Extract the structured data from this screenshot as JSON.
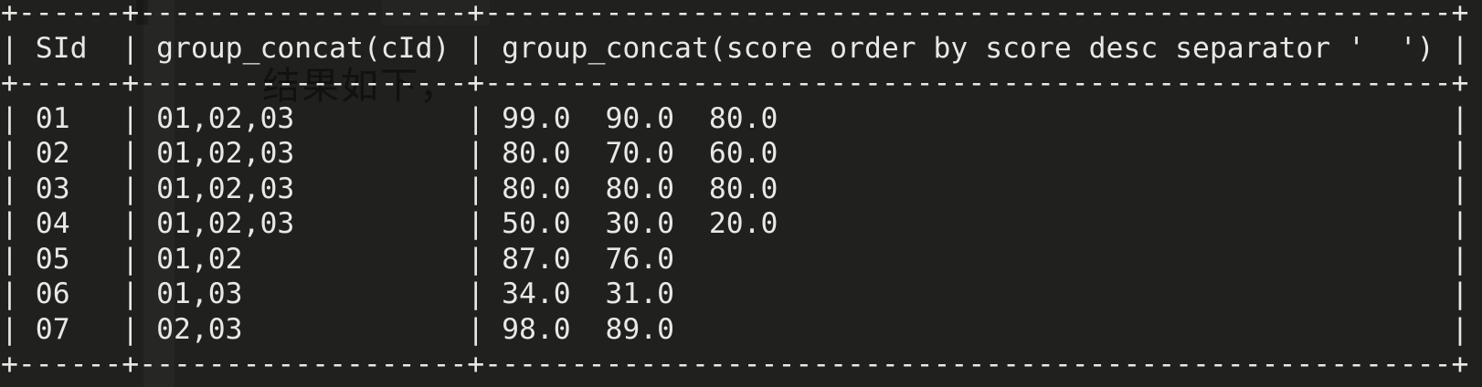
{
  "terminal": {
    "bg_color": "#20211f",
    "fg_color": "#e9e8e4"
  },
  "watermark": {
    "text": "结果如下，"
  },
  "table": {
    "columns": [
      "SId",
      "group_concat(cId)",
      "group_concat(score order by score desc separator '  ')"
    ],
    "cell_separators": {
      "cid_join": ",",
      "score_join": "  "
    },
    "rows": [
      {
        "sid": "01",
        "cids": [
          "01",
          "02",
          "03"
        ],
        "scores": [
          "99.0",
          "90.0",
          "80.0"
        ]
      },
      {
        "sid": "02",
        "cids": [
          "01",
          "02",
          "03"
        ],
        "scores": [
          "80.0",
          "70.0",
          "60.0"
        ]
      },
      {
        "sid": "03",
        "cids": [
          "01",
          "02",
          "03"
        ],
        "scores": [
          "80.0",
          "80.0",
          "80.0"
        ]
      },
      {
        "sid": "04",
        "cids": [
          "01",
          "02",
          "03"
        ],
        "scores": [
          "50.0",
          "30.0",
          "20.0"
        ]
      },
      {
        "sid": "05",
        "cids": [
          "01",
          "02"
        ],
        "scores": [
          "87.0",
          "76.0"
        ]
      },
      {
        "sid": "06",
        "cids": [
          "01",
          "03"
        ],
        "scores": [
          "34.0",
          "31.0"
        ]
      },
      {
        "sid": "07",
        "cids": [
          "02",
          "03"
        ],
        "scores": [
          "98.0",
          "89.0"
        ]
      }
    ]
  }
}
